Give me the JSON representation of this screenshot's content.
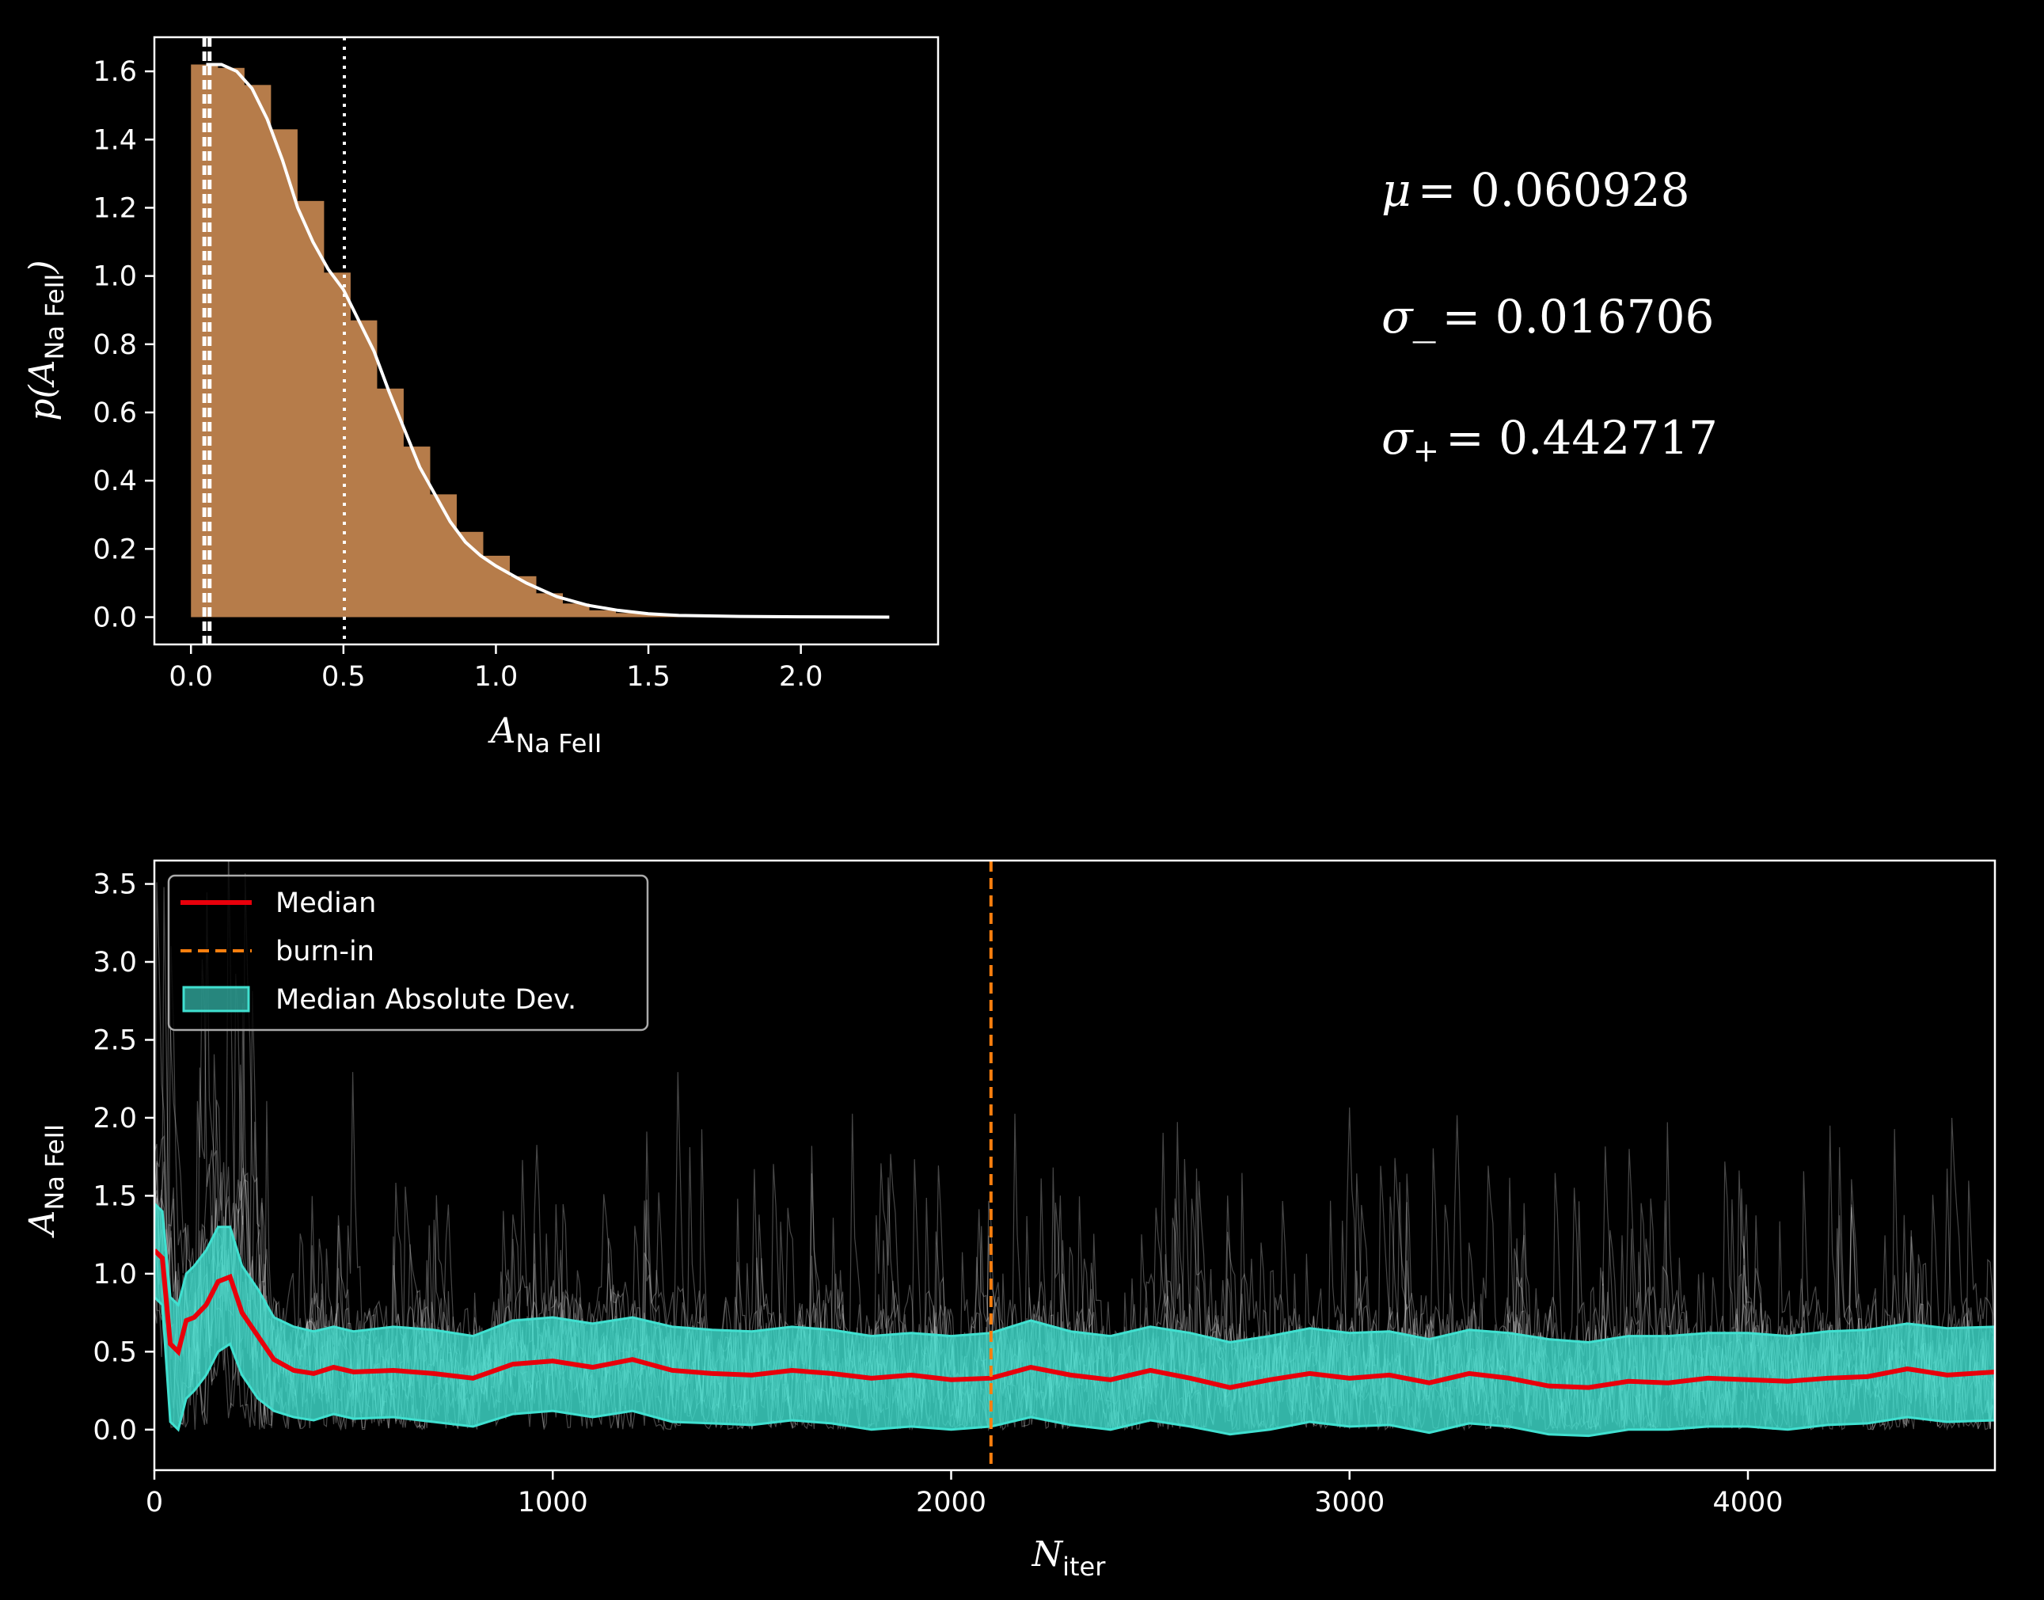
{
  "colors": {
    "background": "#000000",
    "foreground": "#ffffff",
    "histogram": "#b67c4a",
    "median": "#e8000b",
    "burn_in": "#ff7f0e",
    "mad": "#40e0d0",
    "chains": "#ffffff"
  },
  "stats": {
    "mu_symbol": "μ",
    "mu_value": "= 0.060928",
    "sigma_minus_symbol": "σ",
    "sigma_minus_sub": "_",
    "sigma_minus_value": "= 0.016706",
    "sigma_plus_symbol": "σ",
    "sigma_plus_sub": "+",
    "sigma_plus_value": "= 0.442717"
  },
  "chart_data": [
    {
      "type": "bar",
      "subtype": "histogram_with_kde",
      "xlabel_main": "A",
      "xlabel_sub": "Na FeII",
      "ylabel_prefix": "p(A",
      "ylabel_sub": "Na FeII",
      "ylabel_suffix": ")",
      "xlim": [
        -0.12,
        2.45
      ],
      "ylim": [
        -0.08,
        1.7
      ],
      "xticks": [
        0.0,
        0.5,
        1.0,
        1.5,
        2.0
      ],
      "xtick_labels": [
        "0.0",
        "0.5",
        "1.0",
        "1.5",
        "2.0"
      ],
      "yticks": [
        0.0,
        0.2,
        0.4,
        0.6,
        0.8,
        1.0,
        1.2,
        1.4,
        1.6
      ],
      "ytick_labels": [
        "0.0",
        "0.2",
        "0.4",
        "0.6",
        "0.8",
        "1.0",
        "1.2",
        "1.4",
        "1.6"
      ],
      "bin_edges": [
        0.0,
        0.087,
        0.174,
        0.261,
        0.348,
        0.435,
        0.522,
        0.609,
        0.696,
        0.783,
        0.87,
        0.957,
        1.044,
        1.131,
        1.218,
        1.305,
        1.392,
        1.479,
        1.566,
        1.653,
        1.74,
        1.827,
        1.914,
        2.001,
        2.088,
        2.175,
        2.262
      ],
      "bin_values": [
        1.62,
        1.61,
        1.56,
        1.43,
        1.22,
        1.01,
        0.87,
        0.67,
        0.5,
        0.36,
        0.25,
        0.18,
        0.12,
        0.07,
        0.04,
        0.02,
        0.012,
        0.008,
        0.005,
        0.003,
        0.002,
        0.001,
        0.001,
        0.0,
        0.0,
        0.0
      ],
      "kde_x": [
        0.05,
        0.1,
        0.15,
        0.2,
        0.25,
        0.3,
        0.35,
        0.4,
        0.45,
        0.5,
        0.55,
        0.6,
        0.65,
        0.7,
        0.75,
        0.8,
        0.85,
        0.9,
        0.95,
        1.0,
        1.1,
        1.2,
        1.3,
        1.4,
        1.5,
        1.6,
        1.8,
        2.0,
        2.29
      ],
      "kde_y": [
        1.62,
        1.62,
        1.6,
        1.55,
        1.46,
        1.34,
        1.2,
        1.1,
        1.02,
        0.96,
        0.87,
        0.78,
        0.66,
        0.55,
        0.44,
        0.36,
        0.28,
        0.22,
        0.18,
        0.15,
        0.1,
        0.06,
        0.035,
        0.02,
        0.01,
        0.005,
        0.002,
        0.001,
        0.0
      ],
      "vlines": [
        {
          "x": 0.044,
          "style": "dashed"
        },
        {
          "x": 0.061,
          "style": "dashed"
        },
        {
          "x": 0.503,
          "style": "dotted"
        }
      ]
    },
    {
      "type": "line",
      "subtype": "mcmc_trace",
      "xlabel_main": "N",
      "xlabel_sub": "iter",
      "ylabel_main": "A",
      "ylabel_sub": "Na FeII",
      "xlim": [
        0,
        4620
      ],
      "ylim": [
        -0.26,
        3.65
      ],
      "xticks": [
        0,
        1000,
        2000,
        3000,
        4000
      ],
      "xtick_labels": [
        "0",
        "1000",
        "2000",
        "3000",
        "4000"
      ],
      "yticks": [
        0.0,
        0.5,
        1.0,
        1.5,
        2.0,
        2.5,
        3.0,
        3.5
      ],
      "ytick_labels": [
        "0.0",
        "0.5",
        "1.0",
        "1.5",
        "2.0",
        "2.5",
        "3.0",
        "3.5"
      ],
      "burn_in_x": 2100,
      "legend": {
        "placement": "upper-left",
        "entries": [
          "Median",
          "burn-in",
          "Median Absolute Dev."
        ]
      },
      "median_x": [
        0,
        20,
        40,
        60,
        80,
        100,
        130,
        160,
        190,
        220,
        260,
        300,
        350,
        400,
        450,
        500,
        600,
        700,
        800,
        900,
        1000,
        1100,
        1200,
        1300,
        1400,
        1500,
        1600,
        1700,
        1800,
        1900,
        2000,
        2100,
        2200,
        2300,
        2400,
        2500,
        2600,
        2700,
        2800,
        2900,
        3000,
        3100,
        3200,
        3300,
        3400,
        3500,
        3600,
        3700,
        3800,
        3900,
        4000,
        4100,
        4200,
        4300,
        4400,
        4500,
        4620
      ],
      "median_y": [
        1.15,
        1.1,
        0.55,
        0.5,
        0.7,
        0.72,
        0.8,
        0.95,
        0.98,
        0.75,
        0.6,
        0.45,
        0.38,
        0.36,
        0.4,
        0.37,
        0.38,
        0.36,
        0.33,
        0.42,
        0.44,
        0.4,
        0.45,
        0.38,
        0.36,
        0.35,
        0.38,
        0.36,
        0.33,
        0.35,
        0.32,
        0.33,
        0.4,
        0.35,
        0.32,
        0.38,
        0.33,
        0.27,
        0.32,
        0.36,
        0.33,
        0.35,
        0.3,
        0.36,
        0.33,
        0.28,
        0.27,
        0.31,
        0.3,
        0.33,
        0.32,
        0.31,
        0.33,
        0.34,
        0.39,
        0.35,
        0.37
      ],
      "mad_upper": [
        1.45,
        1.4,
        0.85,
        0.8,
        1.0,
        1.05,
        1.15,
        1.3,
        1.3,
        1.05,
        0.9,
        0.72,
        0.66,
        0.63,
        0.66,
        0.63,
        0.66,
        0.64,
        0.6,
        0.7,
        0.72,
        0.68,
        0.72,
        0.66,
        0.64,
        0.63,
        0.66,
        0.64,
        0.6,
        0.62,
        0.6,
        0.62,
        0.7,
        0.63,
        0.6,
        0.66,
        0.62,
        0.56,
        0.6,
        0.65,
        0.62,
        0.63,
        0.58,
        0.64,
        0.62,
        0.58,
        0.56,
        0.6,
        0.6,
        0.62,
        0.62,
        0.6,
        0.63,
        0.64,
        0.68,
        0.65,
        0.66
      ],
      "mad_lower": [
        0.85,
        0.8,
        0.05,
        0.0,
        0.2,
        0.25,
        0.35,
        0.5,
        0.55,
        0.35,
        0.2,
        0.12,
        0.08,
        0.06,
        0.1,
        0.07,
        0.08,
        0.05,
        0.02,
        0.1,
        0.12,
        0.08,
        0.12,
        0.05,
        0.04,
        0.03,
        0.06,
        0.04,
        0.0,
        0.02,
        0.0,
        0.02,
        0.08,
        0.03,
        0.0,
        0.06,
        0.02,
        -0.03,
        0.0,
        0.05,
        0.02,
        0.03,
        -0.02,
        0.04,
        0.02,
        -0.03,
        -0.04,
        0.0,
        0.0,
        0.02,
        0.02,
        0.0,
        0.03,
        0.04,
        0.08,
        0.05,
        0.06
      ]
    }
  ]
}
